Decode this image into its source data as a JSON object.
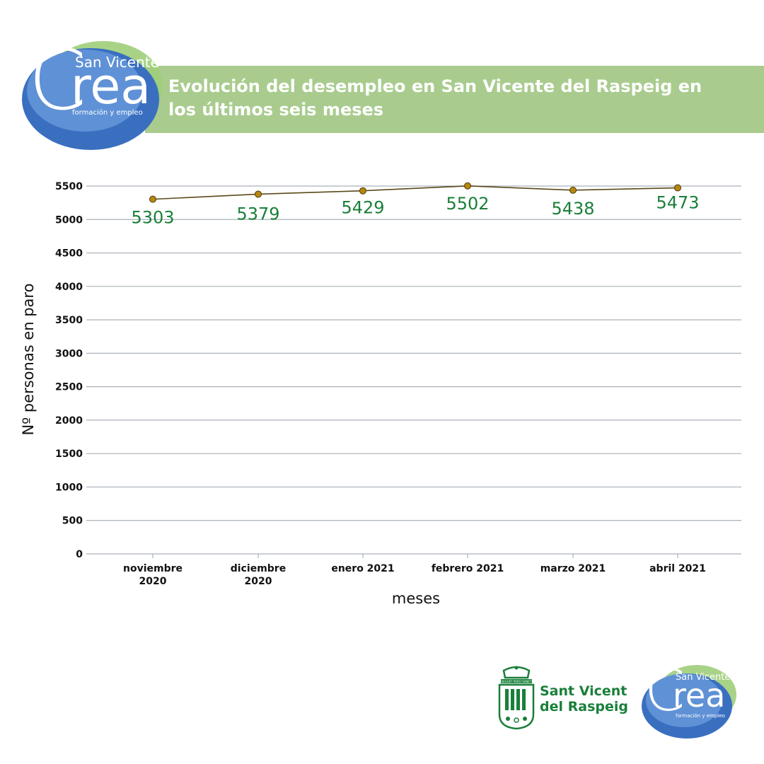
{
  "header": {
    "title": "Evolución del desempleo en San Vicente del Raspeig en los últimos seis meses"
  },
  "logo": {
    "city": "San Vicente",
    "word": "rea",
    "letter": "C",
    "tagline": "formación y empleo"
  },
  "footer": {
    "council_line1": "Sant Vicent",
    "council_line2": "del Raspeig",
    "crest_motto": "SEGUET PERO SANET"
  },
  "colors": {
    "title_band": "#a9cc8e",
    "data_label": "#1a7f3a",
    "marker": "#b8860b",
    "line": "#5a4a1a",
    "grid": "#aab0ba",
    "brand_blue": "#3a6fc0",
    "brand_green": "#9fce7a"
  },
  "chart_data": {
    "type": "line",
    "title": "Evolución del desempleo en San Vicente del Raspeig en los últimos seis meses",
    "xlabel": "meses",
    "ylabel": "Nº personas en paro",
    "categories": [
      [
        "noviembre",
        "2020"
      ],
      [
        "diciembre",
        "2020"
      ],
      [
        "enero 2021"
      ],
      [
        "febrero 2021"
      ],
      [
        "marzo 2021"
      ],
      [
        "abril 2021"
      ]
    ],
    "values": [
      5303,
      5379,
      5429,
      5502,
      5438,
      5473
    ],
    "data_labels": [
      "5303",
      "5379",
      "5429",
      "5502",
      "5438",
      "5473"
    ],
    "ylim": [
      0,
      5500
    ],
    "yticks": [
      "0",
      "500",
      "1000",
      "1500",
      "2000",
      "2500",
      "3000",
      "3500",
      "4000",
      "4500",
      "5000",
      "5500"
    ],
    "grid": true,
    "legend": "none"
  }
}
